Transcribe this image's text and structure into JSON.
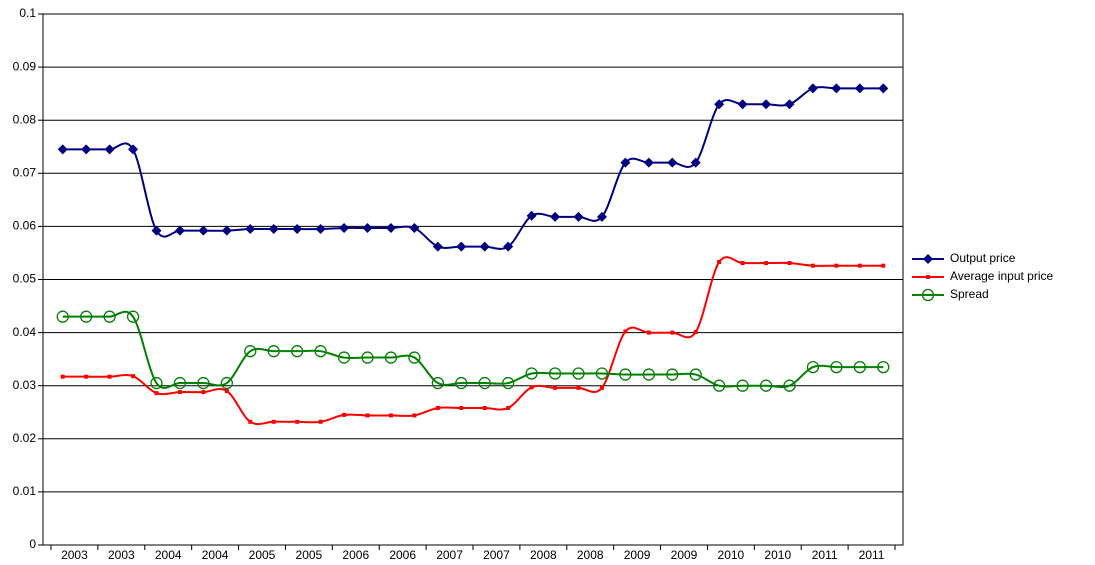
{
  "chart_data": {
    "type": "line",
    "categories": [
      "2003",
      null,
      "2003",
      null,
      "2004",
      null,
      "2004",
      null,
      "2005",
      null,
      "2005",
      null,
      "2006",
      null,
      "2006",
      null,
      "2007",
      null,
      "2007",
      null,
      "2008",
      null,
      "2008",
      null,
      "2009",
      null,
      "2009",
      null,
      "2010",
      null,
      "2010",
      null,
      "2011",
      null,
      "2011",
      null
    ],
    "series": [
      {
        "name": "Output price",
        "color": "#000080",
        "marker": "diamond",
        "values": [
          0.0745,
          0.0745,
          0.0745,
          0.0745,
          0.0592,
          0.0592,
          0.0592,
          0.0592,
          0.0595,
          0.0595,
          0.0595,
          0.0595,
          0.0597,
          0.0597,
          0.0597,
          0.0597,
          0.0562,
          0.0562,
          0.0562,
          0.0562,
          0.062,
          0.0618,
          0.0618,
          0.0618,
          0.072,
          0.072,
          0.072,
          0.072,
          0.083,
          0.083,
          0.083,
          0.083,
          0.086,
          0.086,
          0.086,
          0.086
        ]
      },
      {
        "name": "Average input price",
        "color": "#ff0000",
        "marker": "square",
        "values": [
          0.0317,
          0.0317,
          0.0317,
          0.0318,
          0.0286,
          0.0288,
          0.0288,
          0.029,
          0.0232,
          0.0232,
          0.0232,
          0.0232,
          0.0245,
          0.0244,
          0.0244,
          0.0244,
          0.0258,
          0.0258,
          0.0258,
          0.0258,
          0.0297,
          0.0296,
          0.0296,
          0.0296,
          0.0402,
          0.04,
          0.04,
          0.0401,
          0.0533,
          0.0531,
          0.0531,
          0.0531,
          0.0526,
          0.0526,
          0.0526,
          0.0526
        ]
      },
      {
        "name": "Spread",
        "color": "#008000",
        "marker": "circle",
        "values": [
          0.043,
          0.043,
          0.043,
          0.043,
          0.0305,
          0.0305,
          0.0305,
          0.0305,
          0.0365,
          0.0365,
          0.0365,
          0.0365,
          0.0353,
          0.0353,
          0.0353,
          0.0353,
          0.0305,
          0.0305,
          0.0305,
          0.0305,
          0.0323,
          0.0323,
          0.0323,
          0.0323,
          0.0321,
          0.0321,
          0.0321,
          0.0321,
          0.03,
          0.03,
          0.03,
          0.03,
          0.0335,
          0.0335,
          0.0335,
          0.0335
        ]
      }
    ],
    "ylim": [
      0,
      0.1
    ],
    "yticks": [
      0,
      0.01,
      0.02,
      0.03,
      0.04,
      0.05,
      0.06,
      0.07,
      0.08,
      0.09,
      0.1
    ],
    "grid": true,
    "legend": "right"
  }
}
